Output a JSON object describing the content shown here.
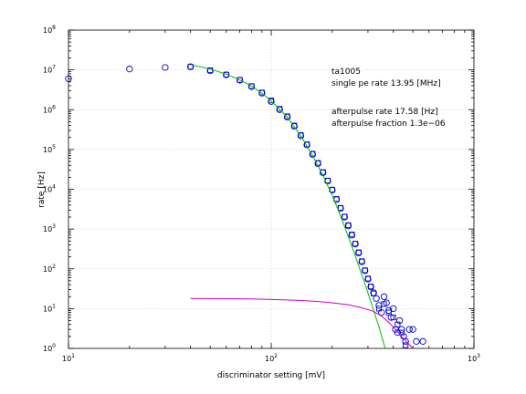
{
  "chart_data": {
    "type": "scatter",
    "xlabel": "discriminator setting [mV]",
    "ylabel": "rate [Hz]",
    "xscale": "log",
    "yscale": "log",
    "xlim": [
      10,
      1000
    ],
    "ylim": [
      1,
      100000000
    ],
    "grid": true,
    "x_ticks": [
      {
        "value": 10,
        "base": "10",
        "exp": "1"
      },
      {
        "value": 100,
        "base": "10",
        "exp": "2"
      },
      {
        "value": 1000,
        "base": "10",
        "exp": "3"
      }
    ],
    "y_ticks": [
      {
        "value": 1,
        "base": "10",
        "exp": "0"
      },
      {
        "value": 10,
        "base": "10",
        "exp": "1"
      },
      {
        "value": 100,
        "base": "10",
        "exp": "2"
      },
      {
        "value": 1000,
        "base": "10",
        "exp": "3"
      },
      {
        "value": 10000,
        "base": "10",
        "exp": "4"
      },
      {
        "value": 100000,
        "base": "10",
        "exp": "5"
      },
      {
        "value": 1000000,
        "base": "10",
        "exp": "6"
      },
      {
        "value": 10000000,
        "base": "10",
        "exp": "7"
      },
      {
        "value": 100000000,
        "base": "10",
        "exp": "8"
      }
    ],
    "annotations": [
      "ta1005",
      "single pe rate 13.95 [MHz]",
      "afterpulse rate 17.58 [Hz]",
      "afterpulse fraction 1.3e−06"
    ],
    "series": [
      {
        "marker": "circle",
        "color": "#0000cc",
        "points": [
          [
            10,
            6000000
          ],
          [
            20,
            10500000
          ],
          [
            30,
            11500000
          ],
          [
            40,
            12000000
          ],
          [
            50,
            9500000
          ],
          [
            60,
            7500000
          ],
          [
            70,
            5500000
          ],
          [
            80,
            3800000
          ],
          [
            90,
            2600000
          ],
          [
            100,
            1600000
          ],
          [
            110,
            1000000
          ],
          [
            120,
            650000
          ],
          [
            130,
            380000
          ],
          [
            140,
            220000
          ],
          [
            150,
            130000
          ],
          [
            160,
            75000
          ],
          [
            170,
            44000
          ],
          [
            180,
            26000
          ],
          [
            190,
            16000
          ],
          [
            200,
            9500
          ],
          [
            210,
            5500
          ],
          [
            220,
            3300
          ],
          [
            230,
            2000
          ],
          [
            240,
            1200
          ],
          [
            250,
            700
          ],
          [
            260,
            420
          ],
          [
            270,
            250
          ],
          [
            280,
            150
          ],
          [
            290,
            90
          ],
          [
            300,
            55
          ],
          [
            310,
            35
          ],
          [
            320,
            25
          ],
          [
            330,
            18
          ],
          [
            340,
            12
          ],
          [
            350,
            8
          ],
          [
            360,
            20
          ],
          [
            370,
            14
          ],
          [
            380,
            9
          ],
          [
            390,
            6
          ],
          [
            400,
            10
          ],
          [
            410,
            3
          ],
          [
            420,
            2.5
          ],
          [
            430,
            5
          ],
          [
            440,
            3
          ],
          [
            450,
            2
          ],
          [
            460,
            1.5
          ],
          [
            480,
            3
          ],
          [
            500,
            3
          ],
          [
            520,
            1.5
          ],
          [
            560,
            1.5
          ]
        ]
      },
      {
        "marker": "square",
        "color": "#0000cc",
        "points": [
          [
            40,
            12000000
          ],
          [
            50,
            9800000
          ],
          [
            60,
            7600000
          ],
          [
            70,
            5600000
          ],
          [
            80,
            3900000
          ],
          [
            90,
            2700000
          ],
          [
            100,
            1700000
          ],
          [
            110,
            1050000
          ],
          [
            120,
            680000
          ],
          [
            130,
            400000
          ],
          [
            140,
            230000
          ],
          [
            150,
            135000
          ],
          [
            160,
            78000
          ],
          [
            170,
            46000
          ],
          [
            180,
            27000
          ],
          [
            190,
            16500
          ],
          [
            200,
            9800
          ],
          [
            210,
            5700
          ],
          [
            220,
            3400
          ],
          [
            230,
            2050
          ],
          [
            240,
            1250
          ],
          [
            250,
            730
          ],
          [
            260,
            430
          ],
          [
            270,
            260
          ],
          [
            280,
            155
          ],
          [
            290,
            92
          ],
          [
            300,
            57
          ],
          [
            310,
            36
          ],
          [
            320,
            24
          ],
          [
            340,
            10
          ],
          [
            360,
            13
          ],
          [
            380,
            8
          ],
          [
            400,
            6
          ],
          [
            420,
            4
          ],
          [
            440,
            2.5
          ],
          [
            460,
            1.2
          ]
        ]
      },
      {
        "type": "line",
        "color": "#00bb00",
        "points": [
          [
            40,
            13500000
          ],
          [
            50,
            10500000
          ],
          [
            60,
            7800000
          ],
          [
            70,
            5600000
          ],
          [
            80,
            3900000
          ],
          [
            90,
            2600000
          ],
          [
            100,
            1650000
          ],
          [
            120,
            650000
          ],
          [
            140,
            220000
          ],
          [
            160,
            70000
          ],
          [
            180,
            22000
          ],
          [
            200,
            7000
          ],
          [
            220,
            2100
          ],
          [
            240,
            650
          ],
          [
            260,
            210
          ],
          [
            280,
            70
          ],
          [
            300,
            25
          ],
          [
            320,
            9
          ],
          [
            340,
            3.5
          ],
          [
            355,
            1.6
          ],
          [
            365,
            1
          ]
        ]
      },
      {
        "type": "line",
        "color": "#cc00cc",
        "points": [
          [
            40,
            18
          ],
          [
            60,
            17.8
          ],
          [
            80,
            17.5
          ],
          [
            100,
            17
          ],
          [
            130,
            16.3
          ],
          [
            160,
            15.5
          ],
          [
            200,
            14
          ],
          [
            240,
            12.5
          ],
          [
            280,
            10.5
          ],
          [
            320,
            8.5
          ],
          [
            350,
            6.5
          ],
          [
            380,
            4.5
          ],
          [
            410,
            3
          ],
          [
            440,
            2
          ],
          [
            470,
            1.4
          ],
          [
            500,
            1
          ]
        ]
      }
    ]
  }
}
